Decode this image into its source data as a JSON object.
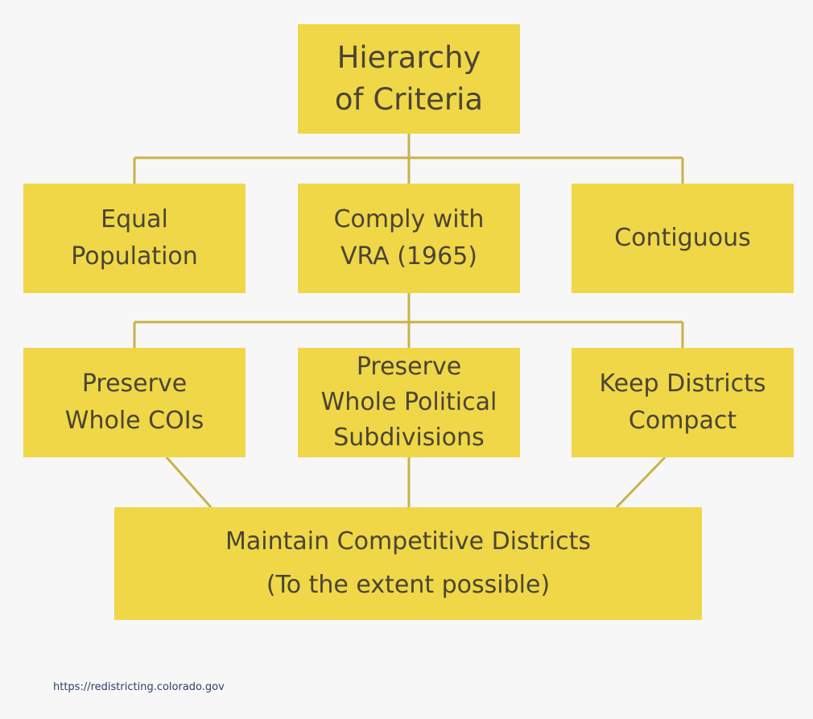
{
  "diagram": {
    "nodes": {
      "root": "Hierarchy\nof Criteria",
      "equal_population": "Equal\nPopulation",
      "vra": "Comply with\nVRA (1965)",
      "contiguous": "Contiguous",
      "preserve_cois": "Preserve\nWhole COIs",
      "preserve_political": "Preserve\nWhole Political\nSubdivisions",
      "keep_compact": "Keep Districts\nCompact",
      "competitive": "Maintain Competitive Districts\n(To the extent possible)"
    },
    "edges": [
      {
        "from": "root",
        "to": "equal_population"
      },
      {
        "from": "root",
        "to": "vra"
      },
      {
        "from": "root",
        "to": "contiguous"
      },
      {
        "from": "vra",
        "to": "preserve_cois"
      },
      {
        "from": "vra",
        "to": "preserve_political"
      },
      {
        "from": "vra",
        "to": "keep_compact"
      },
      {
        "from": "preserve_cois",
        "to": "competitive"
      },
      {
        "from": "preserve_political",
        "to": "competitive"
      },
      {
        "from": "keep_compact",
        "to": "competitive"
      }
    ]
  },
  "colors": {
    "box": "#efd748",
    "line": "#c9b24a",
    "text": "#4b4433",
    "background": "#f7f7f7"
  },
  "source_url": "https://redistricting.colorado.gov"
}
